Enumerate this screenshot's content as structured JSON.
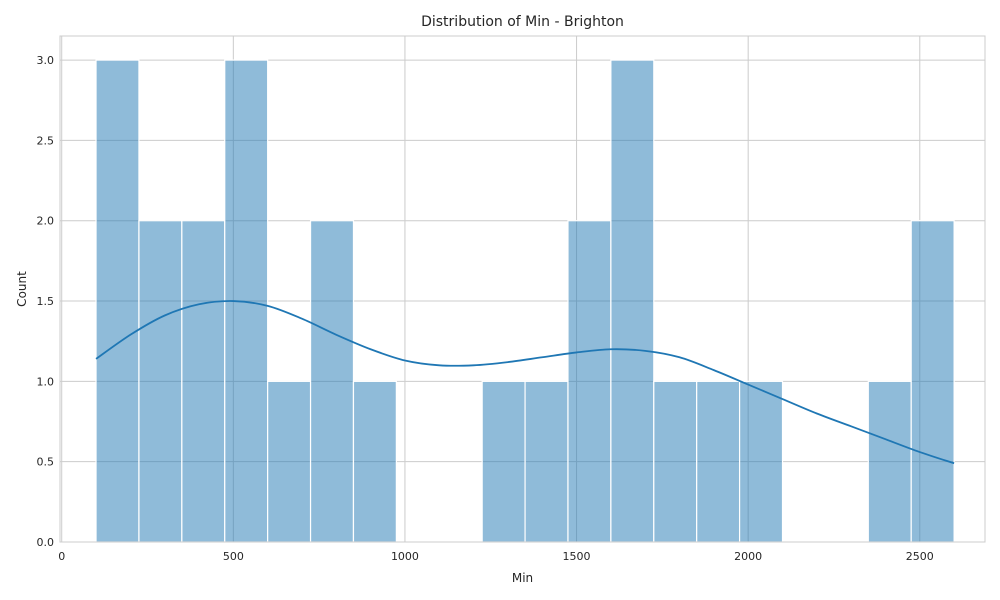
{
  "chart_data": {
    "type": "bar",
    "title": "Distribution of Min - Brighton",
    "xlabel": "Min",
    "ylabel": "Count",
    "xlim": [
      -5,
      2690
    ],
    "ylim": [
      0,
      3.15
    ],
    "x_ticks": [
      0,
      500,
      1000,
      1500,
      2000,
      2500
    ],
    "y_ticks": [
      0.0,
      0.5,
      1.0,
      1.5,
      2.0,
      2.5,
      3.0
    ],
    "x_tick_labels": [
      "0",
      "500",
      "1000",
      "1500",
      "2000",
      "2500"
    ],
    "y_tick_labels": [
      "0.0",
      "0.5",
      "1.0",
      "1.5",
      "2.0",
      "2.5",
      "3.0"
    ],
    "grid": true,
    "bar_color": "#1f77b4",
    "bar_opacity": 0.5,
    "kde_color": "#1f77b4",
    "bins": [
      {
        "start": 100,
        "end": 225,
        "count": 3
      },
      {
        "start": 225,
        "end": 350,
        "count": 2
      },
      {
        "start": 350,
        "end": 475,
        "count": 2
      },
      {
        "start": 475,
        "end": 600,
        "count": 3
      },
      {
        "start": 600,
        "end": 725,
        "count": 1
      },
      {
        "start": 725,
        "end": 850,
        "count": 2
      },
      {
        "start": 850,
        "end": 975,
        "count": 1
      },
      {
        "start": 975,
        "end": 1100,
        "count": 0
      },
      {
        "start": 1100,
        "end": 1225,
        "count": 0
      },
      {
        "start": 1225,
        "end": 1350,
        "count": 1
      },
      {
        "start": 1350,
        "end": 1475,
        "count": 1
      },
      {
        "start": 1475,
        "end": 1600,
        "count": 2
      },
      {
        "start": 1600,
        "end": 1725,
        "count": 3
      },
      {
        "start": 1725,
        "end": 1850,
        "count": 1
      },
      {
        "start": 1850,
        "end": 1975,
        "count": 1
      },
      {
        "start": 1975,
        "end": 2100,
        "count": 1
      },
      {
        "start": 2100,
        "end": 2225,
        "count": 0
      },
      {
        "start": 2225,
        "end": 2350,
        "count": 0
      },
      {
        "start": 2350,
        "end": 2475,
        "count": 1
      },
      {
        "start": 2475,
        "end": 2600,
        "count": 2
      }
    ],
    "kde": {
      "x": [
        100,
        200,
        300,
        400,
        500,
        600,
        700,
        800,
        900,
        1000,
        1100,
        1200,
        1300,
        1400,
        1500,
        1600,
        1700,
        1800,
        1900,
        2000,
        2100,
        2200,
        2300,
        2400,
        2500,
        2600
      ],
      "y": [
        1.14,
        1.29,
        1.41,
        1.48,
        1.5,
        1.47,
        1.39,
        1.29,
        1.2,
        1.13,
        1.1,
        1.1,
        1.12,
        1.15,
        1.18,
        1.2,
        1.19,
        1.15,
        1.07,
        0.98,
        0.89,
        0.8,
        0.72,
        0.64,
        0.56,
        0.49
      ]
    }
  }
}
